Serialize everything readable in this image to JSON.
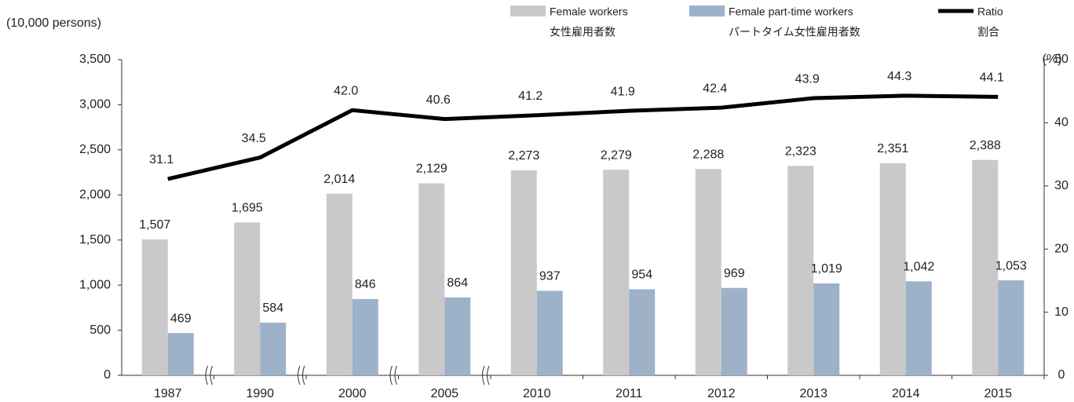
{
  "chart_data": {
    "type": "bar-line",
    "y_axis_label": "(10,000 persons)",
    "y2_axis_label": "(%)",
    "categories": [
      "1987",
      "1990",
      "2000",
      "2005",
      "2010",
      "2011",
      "2012",
      "2013",
      "2014",
      "2015"
    ],
    "series": [
      {
        "name": "Female workers",
        "name_ja": "女性雇用者数",
        "type": "bar",
        "color": "#c9c9c9",
        "values": [
          1507,
          1695,
          2014,
          2129,
          2273,
          2279,
          2288,
          2323,
          2351,
          2388
        ],
        "value_labels": [
          "1,507",
          "1,695",
          "2,014",
          "2,129",
          "2,273",
          "2,279",
          "2,288",
          "2,323",
          "2,351",
          "2,388"
        ]
      },
      {
        "name": "Female part-time workers",
        "name_ja": "パートタイム女性雇用者数",
        "type": "bar",
        "color": "#9db1c9",
        "values": [
          469,
          584,
          846,
          864,
          937,
          954,
          969,
          1019,
          1042,
          1053
        ],
        "value_labels": [
          "469",
          "584",
          "846",
          "864",
          "937",
          "954",
          "969",
          "1,019",
          "1,042",
          "1,053"
        ]
      },
      {
        "name": "Ratio",
        "name_ja": "割合",
        "type": "line",
        "axis": "y2",
        "color": "#000000",
        "values": [
          31.1,
          34.5,
          42.0,
          40.6,
          41.2,
          41.9,
          42.4,
          43.9,
          44.3,
          44.1
        ],
        "value_labels": [
          "31.1",
          "34.5",
          "42.0",
          "40.6",
          "41.2",
          "41.9",
          "42.4",
          "43.9",
          "44.3",
          "44.1"
        ]
      }
    ],
    "ylim": [
      0,
      3500
    ],
    "yticks": [
      0,
      500,
      {
        "value": 1000,
        "label": "1,000"
      },
      {
        "value": 1500,
        "label": "1,500"
      },
      {
        "value": 2000,
        "label": "2,000"
      },
      {
        "value": 2500,
        "label": "2,500"
      },
      {
        "value": 3000,
        "label": "3,000"
      },
      {
        "value": 3500,
        "label": "3,500"
      }
    ],
    "y2lim": [
      0,
      50
    ],
    "y2ticks": [
      0,
      10,
      20,
      30,
      40,
      50
    ],
    "axis_breaks_after": [
      "1987",
      "1990",
      "2000",
      "2005"
    ],
    "grid": false
  }
}
